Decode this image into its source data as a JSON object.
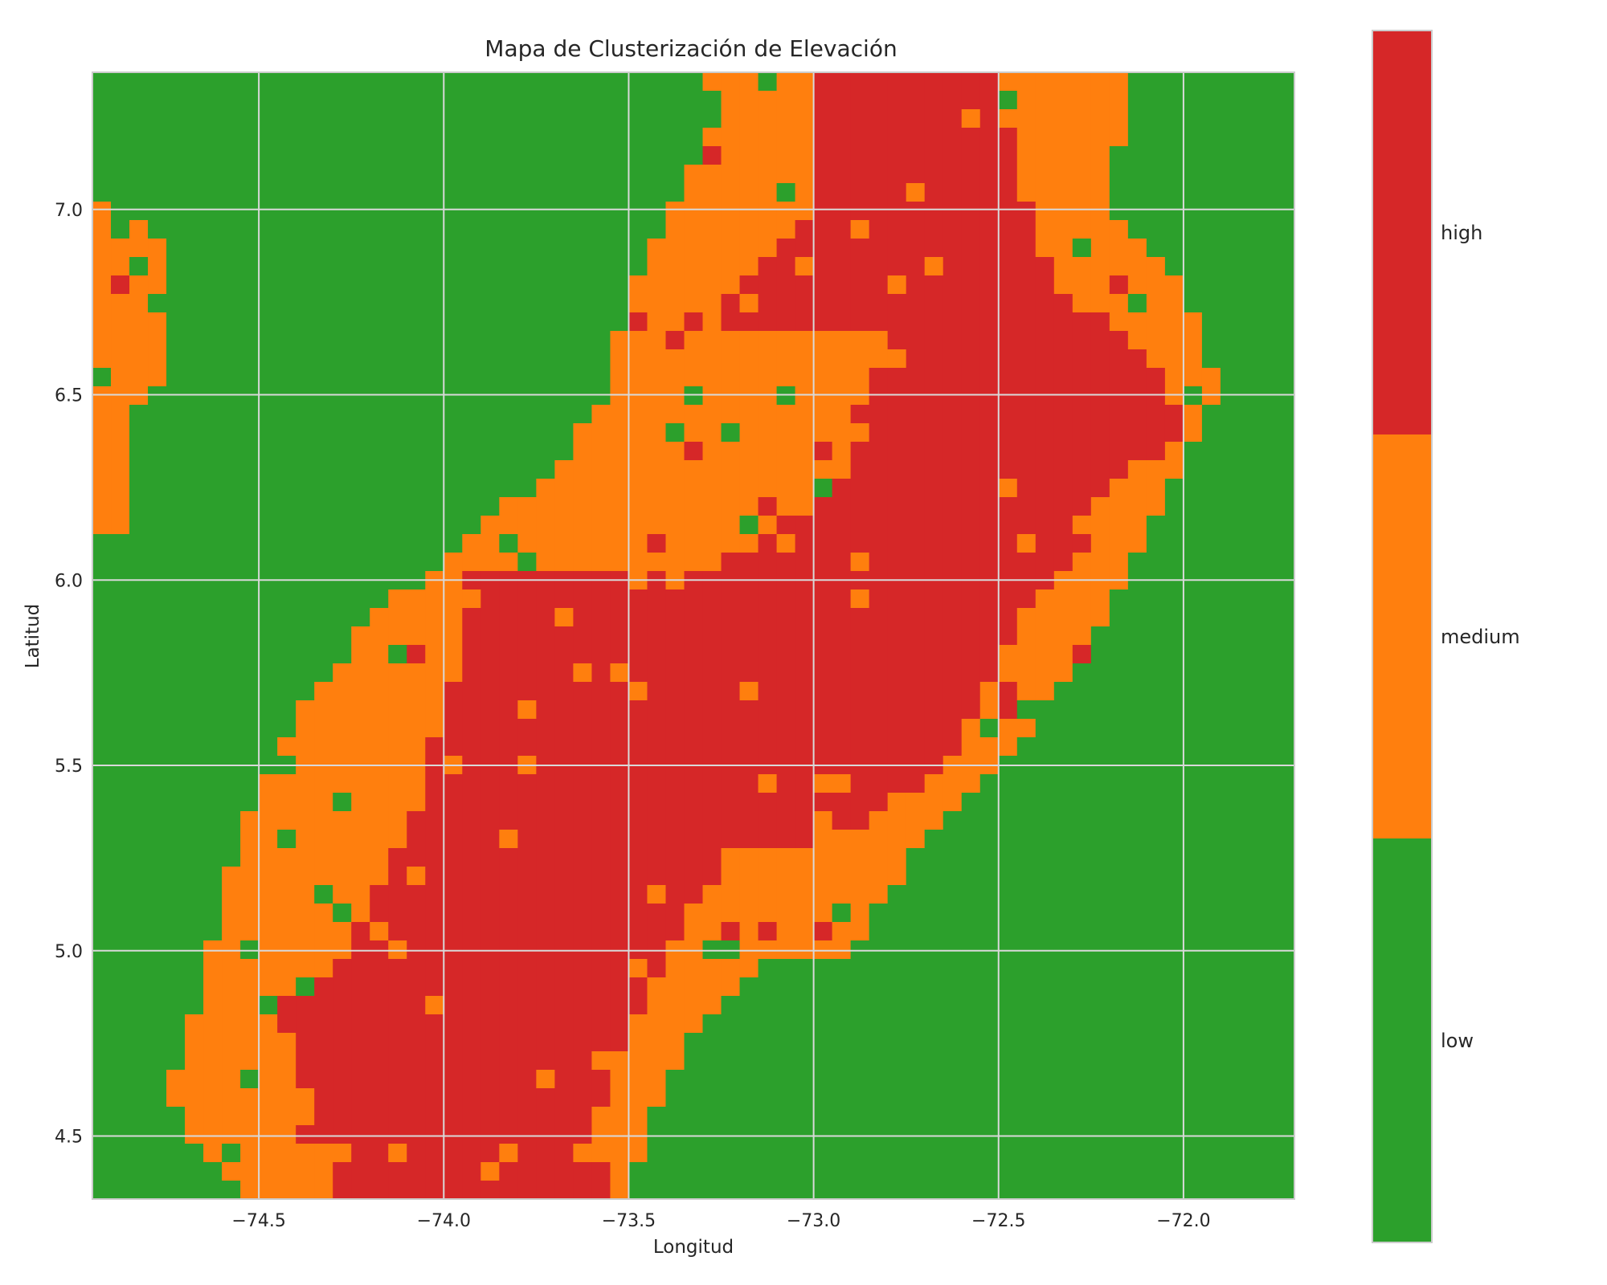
{
  "chart_data": {
    "type": "heatmap",
    "title": "Mapa de Clusterización de Elevación",
    "xlabel": "Longitud",
    "ylabel": "Latitud",
    "xlim": [
      -74.95,
      -71.7
    ],
    "ylim": [
      4.33,
      7.37
    ],
    "xticks": [
      -74.5,
      -74.0,
      -73.5,
      -73.0,
      -72.5,
      -72.0
    ],
    "xtick_labels": [
      "−74.5",
      "−74.0",
      "−73.5",
      "−73.0",
      "−72.5",
      "−72.0"
    ],
    "yticks": [
      4.5,
      5.0,
      5.5,
      6.0,
      6.5,
      7.0
    ],
    "ytick_labels": [
      "4.5",
      "5.0",
      "5.5",
      "6.0",
      "6.5",
      "7.0"
    ],
    "grid": true,
    "legend_position": "right colorbar",
    "categories": [
      "low",
      "medium",
      "high"
    ],
    "colors": {
      "low": "#2ca02c",
      "medium": "#ff7f0e",
      "high": "#d62728"
    },
    "grid_cols": 65,
    "grid_rows": 61,
    "high_region_polygon": [
      [
        -73.0,
        7.37
      ],
      [
        -72.5,
        7.37
      ],
      [
        -72.45,
        7.1
      ],
      [
        -72.35,
        6.8
      ],
      [
        -72.1,
        6.6
      ],
      [
        -72.0,
        6.4
      ],
      [
        -72.2,
        6.25
      ],
      [
        -72.35,
        6.0
      ],
      [
        -72.5,
        5.8
      ],
      [
        -72.65,
        5.5
      ],
      [
        -72.85,
        5.35
      ],
      [
        -73.0,
        5.3
      ],
      [
        -73.2,
        5.3
      ],
      [
        -73.4,
        5.0
      ],
      [
        -73.5,
        4.8
      ],
      [
        -73.6,
        4.5
      ],
      [
        -73.55,
        4.33
      ],
      [
        -74.3,
        4.33
      ],
      [
        -74.35,
        4.6
      ],
      [
        -74.45,
        4.85
      ],
      [
        -74.3,
        4.95
      ],
      [
        -74.15,
        5.2
      ],
      [
        -74.05,
        5.5
      ],
      [
        -73.95,
        5.8
      ],
      [
        -73.95,
        6.0
      ],
      [
        -73.7,
        6.05
      ],
      [
        -73.45,
        6.0
      ],
      [
        -73.2,
        6.05
      ],
      [
        -72.9,
        6.3
      ],
      [
        -72.8,
        6.65
      ],
      [
        -73.3,
        6.7
      ],
      [
        -73.0,
        7.0
      ]
    ],
    "medium_region_polygon": [
      [
        -73.3,
        7.37
      ],
      [
        -73.25,
        7.25
      ],
      [
        -73.35,
        7.05
      ],
      [
        -73.5,
        6.8
      ],
      [
        -73.55,
        6.5
      ],
      [
        -73.7,
        6.3
      ],
      [
        -73.95,
        6.1
      ],
      [
        -74.15,
        5.95
      ],
      [
        -74.35,
        5.7
      ],
      [
        -74.5,
        5.45
      ],
      [
        -74.6,
        5.2
      ],
      [
        -74.65,
        4.9
      ],
      [
        -74.75,
        4.6
      ],
      [
        -74.55,
        4.33
      ],
      [
        -73.5,
        4.33
      ],
      [
        -73.45,
        4.55
      ],
      [
        -73.3,
        4.8
      ],
      [
        -73.15,
        4.95
      ],
      [
        -72.9,
        5.0
      ],
      [
        -72.7,
        5.3
      ],
      [
        -72.5,
        5.5
      ],
      [
        -72.35,
        5.7
      ],
      [
        -72.2,
        5.9
      ],
      [
        -72.1,
        6.1
      ],
      [
        -71.9,
        6.5
      ],
      [
        -72.0,
        6.8
      ],
      [
        -72.2,
        7.0
      ],
      [
        -72.15,
        7.37
      ]
    ],
    "medium_patch_west": [
      [
        -74.95,
        7.05
      ],
      [
        -74.75,
        6.9
      ],
      [
        -74.75,
        6.55
      ],
      [
        -74.85,
        6.45
      ],
      [
        -74.85,
        6.1
      ],
      [
        -74.95,
        6.1
      ]
    ]
  },
  "colorbar": {
    "labels": [
      "high",
      "medium",
      "low"
    ]
  }
}
